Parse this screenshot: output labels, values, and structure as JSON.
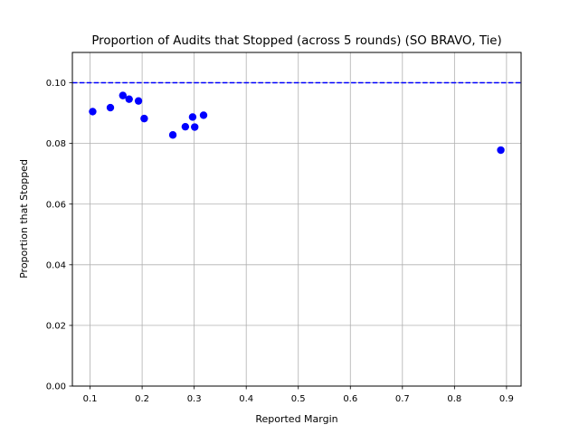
{
  "chart_data": {
    "type": "scatter",
    "title": "Proportion of Audits that Stopped (across 5 rounds) (SO BRAVO, Tie)",
    "xlabel": "Reported Margin",
    "ylabel": "Proportion that Stopped",
    "xlim": [
      0.066,
      0.928
    ],
    "ylim": [
      0.0,
      0.11
    ],
    "xticks": [
      "0.1",
      "0.2",
      "0.3",
      "0.4",
      "0.5",
      "0.6",
      "0.7",
      "0.8",
      "0.9"
    ],
    "yticks": [
      "0.00",
      "0.02",
      "0.04",
      "0.06",
      "0.08",
      "0.10"
    ],
    "grid": true,
    "series": [
      {
        "color": "#0000ff",
        "marker": "circle",
        "points": [
          {
            "x": 0.105,
            "y": 0.0905
          },
          {
            "x": 0.139,
            "y": 0.0918
          },
          {
            "x": 0.163,
            "y": 0.0958
          },
          {
            "x": 0.175,
            "y": 0.0946
          },
          {
            "x": 0.193,
            "y": 0.094
          },
          {
            "x": 0.204,
            "y": 0.0882
          },
          {
            "x": 0.259,
            "y": 0.0828
          },
          {
            "x": 0.283,
            "y": 0.0855
          },
          {
            "x": 0.297,
            "y": 0.0887
          },
          {
            "x": 0.301,
            "y": 0.0854
          },
          {
            "x": 0.318,
            "y": 0.0893
          },
          {
            "x": 0.889,
            "y": 0.0778
          }
        ]
      }
    ],
    "reference_line": {
      "y": 0.1,
      "color": "#0000ff",
      "style": "dashed"
    }
  }
}
